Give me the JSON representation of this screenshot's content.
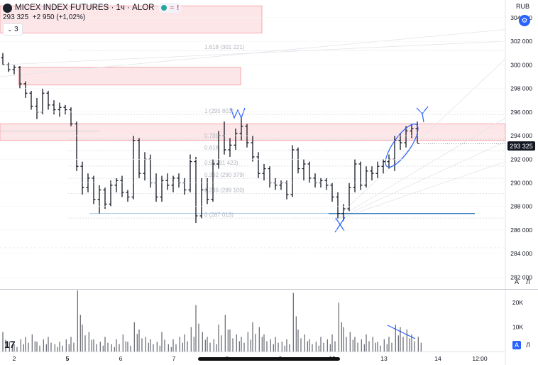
{
  "header": {
    "symbol": "MICEX INDEX FUTURES",
    "interval": "1ч",
    "source": "ALOR",
    "separator": "·",
    "price": "293 325",
    "change": "+2 950 (+1,02%)",
    "indicator_count": "3",
    "currency": "RUB",
    "price_tag": "293 325",
    "scale_buttons": [
      "A",
      "Л"
    ],
    "volume_scale_buttons": [
      "A",
      "Л"
    ]
  },
  "colors": {
    "accent": "#2962ff",
    "zone": "#f7a7ad",
    "annotation": "#2962ff",
    "support": "#5b9bd5"
  },
  "annotations": [
    "W",
    "Y",
    "X"
  ],
  "chart_data": {
    "type": "ohlc",
    "price_axis": {
      "ticks": [
        "304 000",
        "302 000",
        "300 000",
        "298 000",
        "296 000",
        "294 000",
        "292 000",
        "290 000",
        "288 000",
        "286 000",
        "284 000",
        "282 000"
      ],
      "range": [
        281000,
        305500
      ]
    },
    "time_axis": {
      "ticks": [
        "2",
        "5",
        "6",
        "7",
        "8",
        "9",
        "12",
        "13",
        "14",
        "12:00"
      ]
    },
    "fib_levels": [
      {
        "label": "1.618 (301 221)",
        "value": 301221
      },
      {
        "label": "1 (295 801)",
        "value": 295801
      },
      {
        "label": "0.786",
        "value": 293700
      },
      {
        "label": "0.618",
        "value": 292700
      },
      {
        "label": "0.5 (291 423)",
        "value": 291423
      },
      {
        "label": "0.382 (290 379)",
        "value": 290379
      },
      {
        "label": "0.236 (289 100)",
        "value": 289100
      },
      {
        "label": "0 (287 013)",
        "value": 287013
      }
    ],
    "zones": [
      {
        "top": 305000,
        "bottom": 302700
      },
      {
        "top": 299800,
        "bottom": 298300
      },
      {
        "top": 295000,
        "bottom": 293600
      }
    ],
    "support_level": 287400,
    "bars": [
      [
        300600,
        301000,
        300000,
        300000
      ],
      [
        300000,
        300200,
        299400,
        299600
      ],
      [
        299600,
        300000,
        299200,
        299800
      ],
      [
        299800,
        299900,
        298000,
        298400
      ],
      [
        298400,
        298600,
        297200,
        297600
      ],
      [
        297600,
        297800,
        296200,
        296500
      ],
      [
        296500,
        297200,
        295400,
        296000
      ],
      [
        296000,
        298000,
        295800,
        297600
      ],
      [
        297600,
        297800,
        296200,
        296600
      ],
      [
        296600,
        297000,
        295800,
        296200
      ],
      [
        296200,
        296800,
        295600,
        296400
      ],
      [
        296400,
        296600,
        295800,
        296200
      ],
      [
        296200,
        296400,
        294800,
        295000
      ],
      [
        295000,
        295200,
        291000,
        291400
      ],
      [
        291400,
        291800,
        289000,
        289600
      ],
      [
        289600,
        290800,
        289200,
        290400
      ],
      [
        290400,
        290600,
        288200,
        288600
      ],
      [
        288600,
        289800,
        287400,
        289400
      ],
      [
        289400,
        289600,
        287800,
        288200
      ],
      [
        288200,
        290200,
        288000,
        289800
      ],
      [
        289800,
        290400,
        289200,
        290200
      ],
      [
        290200,
        290600,
        288800,
        289200
      ],
      [
        289200,
        289400,
        288400,
        288800
      ],
      [
        288800,
        294000,
        288600,
        293600
      ],
      [
        293600,
        293800,
        290400,
        290800
      ],
      [
        290800,
        292600,
        290200,
        292000
      ],
      [
        292000,
        292400,
        289600,
        290000
      ],
      [
        290000,
        290800,
        288400,
        288800
      ],
      [
        288800,
        290600,
        288400,
        290200
      ],
      [
        290200,
        290800,
        289400,
        289800
      ],
      [
        289800,
        290600,
        289200,
        290400
      ],
      [
        290400,
        290800,
        289600,
        290000
      ],
      [
        290000,
        290400,
        289000,
        289400
      ],
      [
        289400,
        292400,
        289200,
        291800
      ],
      [
        291800,
        292200,
        286600,
        287200
      ],
      [
        287200,
        290400,
        287000,
        289400
      ],
      [
        289400,
        290400,
        288200,
        288600
      ],
      [
        288600,
        292000,
        288400,
        291600
      ],
      [
        291600,
        294400,
        291200,
        294000
      ],
      [
        294000,
        295200,
        292400,
        292800
      ],
      [
        292800,
        293800,
        292200,
        293200
      ],
      [
        293200,
        294600,
        292800,
        294200
      ],
      [
        294200,
        295600,
        293600,
        294800
      ],
      [
        294800,
        295000,
        293000,
        293400
      ],
      [
        293400,
        294000,
        291800,
        292200
      ],
      [
        292200,
        292600,
        290400,
        290800
      ],
      [
        290800,
        291600,
        290200,
        291200
      ],
      [
        291200,
        291400,
        289600,
        290000
      ],
      [
        290000,
        290400,
        289400,
        289800
      ],
      [
        289800,
        290200,
        289400,
        290000
      ],
      [
        290000,
        290200,
        288600,
        289000
      ],
      [
        289000,
        293200,
        288800,
        292800
      ],
      [
        292800,
        293000,
        290800,
        291200
      ],
      [
        291200,
        292000,
        290200,
        291600
      ],
      [
        291600,
        291800,
        290000,
        290400
      ],
      [
        290400,
        290800,
        289600,
        290000
      ],
      [
        290000,
        290400,
        289600,
        290200
      ],
      [
        290200,
        290400,
        289400,
        289800
      ],
      [
        289800,
        290000,
        288400,
        288800
      ],
      [
        288800,
        289200,
        287000,
        287400
      ],
      [
        287400,
        288200,
        286800,
        287800
      ],
      [
        287800,
        290000,
        287600,
        289600
      ],
      [
        289600,
        292000,
        289200,
        291600
      ],
      [
        291600,
        291800,
        289400,
        289800
      ],
      [
        289800,
        291400,
        289600,
        291000
      ],
      [
        291000,
        291400,
        290200,
        290800
      ],
      [
        290800,
        291800,
        290400,
        291400
      ],
      [
        291400,
        292000,
        290800,
        291800
      ],
      [
        291800,
        292400,
        291200,
        292000
      ],
      [
        292000,
        294000,
        291000,
        293600
      ],
      [
        293600,
        294200,
        292800,
        293400
      ],
      [
        293400,
        294800,
        293000,
        294400
      ],
      [
        294400,
        295000,
        293800,
        294600
      ],
      [
        294600,
        295200,
        293400,
        293325
      ]
    ],
    "volume": {
      "ticks": [
        "20K",
        "10K"
      ],
      "range": [
        0,
        25000
      ],
      "values": [
        8000,
        4000,
        3000,
        5000,
        6000,
        7000,
        4000,
        5000,
        6000,
        3000,
        4000,
        5000,
        6000,
        25000,
        11000,
        8000,
        5000,
        4000,
        6000,
        3000,
        5000,
        7000,
        4000,
        12000,
        9000,
        6000,
        5000,
        4000,
        8000,
        3000,
        5000,
        6000,
        7000,
        10000,
        19000,
        8000,
        6000,
        5000,
        11000,
        15000,
        9000,
        7000,
        6000,
        8000,
        12000,
        10000,
        7000,
        5000,
        6000,
        4000,
        5000,
        24000,
        9000,
        7000,
        5000,
        4000,
        6000,
        5000,
        7000,
        20000,
        10000,
        8000,
        6000,
        5000,
        7000,
        6000,
        4000,
        5000,
        6000,
        11000,
        10000,
        9000,
        7000,
        6000
      ]
    }
  }
}
